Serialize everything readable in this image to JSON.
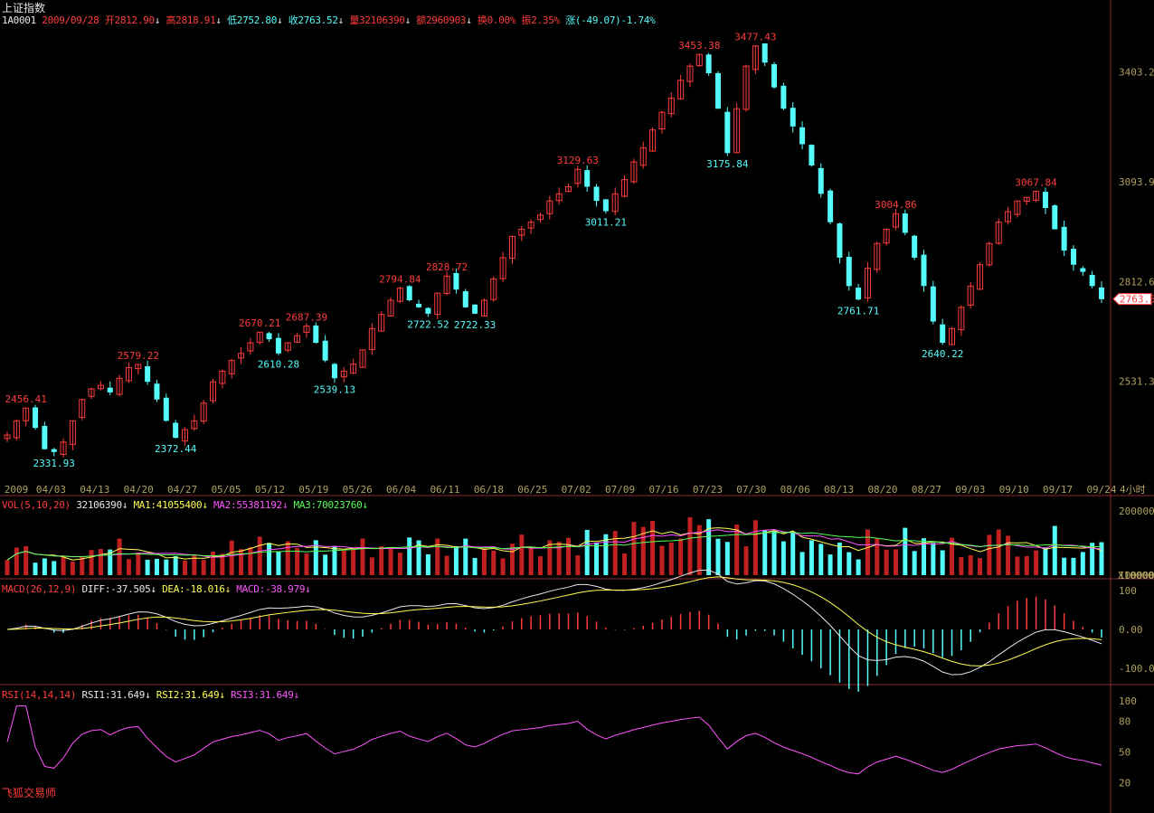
{
  "colors": {
    "up": "#ff3c3c",
    "down": "#54fcfc",
    "axis": "#b0a060",
    "ma1": "#ffff54",
    "ma2": "#ff54ff",
    "ma3": "#54ff54",
    "diff": "#e8e8e8",
    "dea": "#ffff54",
    "rsi": "#ff54ff",
    "border": "#8b2a2a"
  },
  "title": "上证指数",
  "info": {
    "code": "1A0001",
    "date": "2009/09/28",
    "open": "开2812.90",
    "high": "高2818.91",
    "low": "低2752.80",
    "close": "收2763.52",
    "volume": "量32106390",
    "amount": "额2960903",
    "turnover": "换0.00%",
    "amplitude": "振2.35%",
    "change": "涨(-49.07)-1.74%",
    "arrow_down": "↓"
  },
  "price_axis": {
    "ticks": [
      "3403.2",
      "3093.9",
      "2812.6",
      "2531.3"
    ],
    "current": "2763.5"
  },
  "date_axis": {
    "labels": [
      "2009",
      "04/03",
      "04/13",
      "04/20",
      "04/27",
      "05/05",
      "05/12",
      "05/19",
      "05/26",
      "06/04",
      "06/11",
      "06/18",
      "06/25",
      "07/02",
      "07/09",
      "07/16",
      "07/23",
      "07/30",
      "08/06",
      "08/13",
      "08/20",
      "08/27",
      "09/03",
      "09/10",
      "09/17",
      "09/24"
    ],
    "period": "4小时"
  },
  "annotations": [
    {
      "text": "2456.41",
      "type": "high"
    },
    {
      "text": "2331.93",
      "type": "low"
    },
    {
      "text": "2579.22",
      "type": "high"
    },
    {
      "text": "2372.44",
      "type": "low"
    },
    {
      "text": "2670.21",
      "type": "high"
    },
    {
      "text": "2610.28",
      "type": "low"
    },
    {
      "text": "2687.39",
      "type": "high"
    },
    {
      "text": "2539.13",
      "type": "low"
    },
    {
      "text": "2794.84",
      "type": "high"
    },
    {
      "text": "2722.52",
      "type": "low"
    },
    {
      "text": "2828.72",
      "type": "high"
    },
    {
      "text": "2722.33",
      "type": "low"
    },
    {
      "text": "3129.63",
      "type": "high"
    },
    {
      "text": "3011.21",
      "type": "low"
    },
    {
      "text": "3453.38",
      "type": "high"
    },
    {
      "text": "3477.43",
      "type": "high"
    },
    {
      "text": "3175.84",
      "type": "low"
    },
    {
      "text": "3004.86",
      "type": "high"
    },
    {
      "text": "2761.71",
      "type": "low"
    },
    {
      "text": "2640.22",
      "type": "low"
    },
    {
      "text": "3067.84",
      "type": "high"
    }
  ],
  "vol": {
    "header": "VOL(5,10,20)",
    "value": "32106390",
    "ma1": "MA1:41055400",
    "ma2": "MA2:55381192",
    "ma3": "MA3:70023760",
    "arrow": "↓",
    "axis": [
      "200000",
      "100000"
    ],
    "unit": "X10000"
  },
  "macd": {
    "header": "MACD(26,12,9)",
    "diff": "DIFF:-37.505",
    "dea": "DEA:-18.016",
    "macd": "MACD:-38.979",
    "arrow": "↓",
    "axis": [
      "100",
      "0.00",
      "-100.0"
    ]
  },
  "rsi": {
    "header": "RSI(14,14,14)",
    "rsi1": "RSI1:31.649",
    "rsi2": "RSI2:31.649",
    "rsi3": "RSI3:31.649",
    "arrow": "↓",
    "axis": [
      "100",
      "80",
      "50",
      "20"
    ]
  },
  "chart_data": {
    "type": "candlestick",
    "series_close_path": [
      2380,
      2420,
      2456,
      2400,
      2340,
      2332,
      2360,
      2420,
      2480,
      2510,
      2520,
      2500,
      2540,
      2570,
      2579,
      2530,
      2480,
      2420,
      2372,
      2395,
      2420,
      2470,
      2530,
      2560,
      2590,
      2610,
      2640,
      2670,
      2650,
      2610,
      2640,
      2660,
      2687,
      2640,
      2590,
      2540,
      2560,
      2580,
      2620,
      2680,
      2720,
      2760,
      2794,
      2760,
      2740,
      2722,
      2780,
      2828,
      2790,
      2740,
      2722,
      2760,
      2820,
      2880,
      2940,
      2960,
      2980,
      3000,
      3040,
      3060,
      3080,
      3129,
      3080,
      3040,
      3011,
      3060,
      3100,
      3150,
      3190,
      3240,
      3290,
      3330,
      3380,
      3420,
      3453,
      3400,
      3300,
      3175,
      3300,
      3420,
      3477,
      3430,
      3360,
      3300,
      3250,
      3200,
      3140,
      3060,
      2980,
      2880,
      2800,
      2762,
      2850,
      2920,
      2960,
      3004,
      2950,
      2880,
      2800,
      2700,
      2640,
      2680,
      2740,
      2800,
      2860,
      2920,
      2980,
      3010,
      3040,
      3050,
      3067,
      3020,
      2960,
      2900,
      2860,
      2840,
      2800,
      2763
    ]
  }
}
